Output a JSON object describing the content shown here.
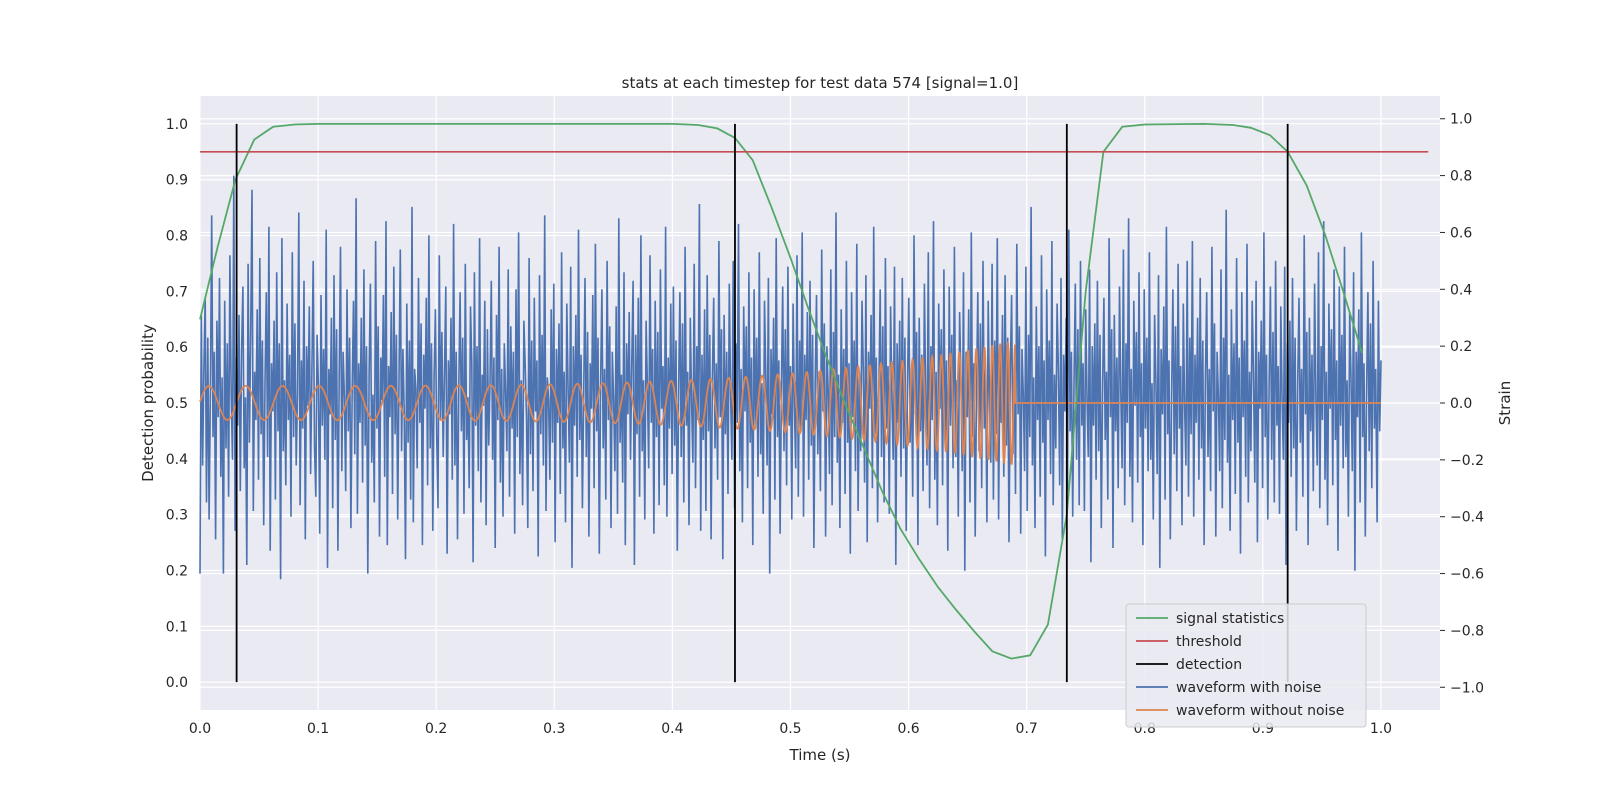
{
  "chart_data": {
    "type": "line",
    "title": "stats at each timestep for test data 574 [signal=1.0]",
    "xlabel": "Time (s)",
    "ylabel": "Detection probability",
    "y2label": "Strain",
    "xlim": [
      0.0,
      1.05
    ],
    "ylim": [
      -0.05,
      1.05
    ],
    "y2lim": [
      -1.08,
      1.08
    ],
    "xticks": [
      "0.0",
      "0.1",
      "0.2",
      "0.3",
      "0.4",
      "0.5",
      "0.6",
      "0.7",
      "0.8",
      "0.9",
      "1.0"
    ],
    "yticks": [
      "0.0",
      "0.1",
      "0.2",
      "0.3",
      "0.4",
      "0.5",
      "0.6",
      "0.7",
      "0.8",
      "0.9",
      "1.0"
    ],
    "y2ticks": [
      "−1.0",
      "−0.8",
      "−0.6",
      "−0.4",
      "−0.2",
      "0.0",
      "0.2",
      "0.4",
      "0.6",
      "0.8",
      "1.0"
    ],
    "grid": true,
    "legend_position": "lower right",
    "background_color": "#eaeaf2",
    "series": [
      {
        "name": "signal statistics",
        "axis": "left",
        "color": "#55a868",
        "x": [
          0.0,
          0.015,
          0.03,
          0.046,
          0.062,
          0.08,
          0.1,
          0.2,
          0.3,
          0.4,
          0.422,
          0.438,
          0.453,
          0.468,
          0.484,
          0.5,
          0.515,
          0.53,
          0.546,
          0.562,
          0.578,
          0.593,
          0.609,
          0.625,
          0.64,
          0.656,
          0.671,
          0.687,
          0.703,
          0.718,
          0.734,
          0.75,
          0.765,
          0.781,
          0.8,
          0.85,
          0.875,
          0.89,
          0.906,
          0.921,
          0.937,
          0.953,
          0.968,
          0.984
        ],
        "y": [
          0.65,
          0.78,
          0.9,
          0.972,
          0.995,
          0.999,
          1.0,
          1.0,
          1.0,
          1.0,
          0.998,
          0.992,
          0.975,
          0.935,
          0.85,
          0.76,
          0.67,
          0.585,
          0.5,
          0.42,
          0.34,
          0.275,
          0.22,
          0.17,
          0.13,
          0.09,
          0.055,
          0.042,
          0.048,
          0.103,
          0.3,
          0.7,
          0.95,
          0.995,
          0.999,
          1.0,
          0.998,
          0.993,
          0.98,
          0.95,
          0.89,
          0.8,
          0.7,
          0.59
        ]
      },
      {
        "name": "threshold",
        "axis": "left",
        "color": "#c44e52",
        "x": [
          0.0,
          1.04
        ],
        "y": [
          0.95,
          0.95
        ]
      },
      {
        "name": "detection",
        "axis": "left",
        "color": "#000000",
        "vlines": [
          0.031,
          0.453,
          0.734,
          0.921
        ],
        "ymin": 0.0,
        "ymax": 1.0
      },
      {
        "name": "waveform with noise",
        "axis": "right",
        "color": "#4c72b0",
        "x_start": 0.0,
        "x_end": 1.0,
        "y2": [
          -0.6,
          0.31,
          -0.22,
          0.12,
          0.37,
          -0.35,
          0.23,
          -0.41,
          0.04,
          0.66,
          -0.12,
          0.18,
          -0.48,
          0.29,
          -0.05,
          0.44,
          -0.26,
          0.09,
          -0.6,
          0.36,
          -0.16,
          0.21,
          -0.33,
          0.52,
          0.03,
          -0.2,
          0.8,
          -0.45,
          0.16,
          -0.08,
          0.31,
          -0.31,
          0.19,
          0.41,
          -0.23,
          0.02,
          -0.57,
          0.49,
          -0.14,
          0.25,
          0.75,
          -0.38,
          0.11,
          -0.06,
          0.33,
          -0.27,
          0.51,
          -0.11,
          0.22,
          -0.43,
          0.07,
          0.39,
          -0.19,
          0.62,
          -0.52,
          0.14,
          -0.03,
          0.29,
          -0.34,
          0.46,
          -0.1,
          0.21,
          -0.62,
          0.58,
          -0.17,
          0.08,
          -0.29,
          0.35,
          -0.06,
          0.17,
          -0.4,
          0.53,
          -0.12,
          0.28,
          -0.22,
          0.04,
          0.67,
          -0.36,
          0.15,
          -0.09,
          0.43,
          -0.48,
          0.2,
          -0.01,
          0.34,
          -0.25,
          0.11,
          0.5,
          -0.15,
          -0.33,
          0.24,
          0.06,
          -0.46,
          0.38,
          -0.08,
          0.19,
          -0.2,
          0.61,
          -0.58,
          0.12,
          -0.04,
          0.3,
          -0.37,
          0.45,
          -0.13,
          0.26,
          -0.52,
          0.09,
          0.55,
          -0.24,
          0.18,
          0.02,
          -0.31,
          0.4,
          -0.1,
          0.23,
          -0.44,
          0.05,
          0.36,
          -0.18,
          0.72,
          -0.39,
          0.14,
          -0.07,
          0.3,
          -0.28,
          0.47,
          -0.15,
          0.2,
          -0.6,
          0.1,
          0.42,
          -0.21,
          0.03,
          -0.35,
          0.57,
          -0.09,
          0.27,
          -0.47,
          0.16,
          0.01,
          0.38,
          -0.26,
          0.64,
          -0.5,
          0.13,
          -0.05,
          0.32,
          -0.32,
          0.48,
          -0.11,
          0.24,
          -0.41,
          0.08,
          0.54,
          -0.17,
          0.19,
          -0.03,
          -0.55,
          0.35,
          -0.14,
          0.22,
          -0.34,
          0.69,
          -0.42,
          0.12,
          0.05,
          -0.23,
          0.44,
          -0.07,
          0.28,
          -0.5,
          0.17,
          -0.02,
          0.37,
          -0.29,
          0.59,
          -0.16,
          0.21,
          -0.45,
          0.09,
          0.33,
          -0.12,
          -0.37,
          0.52,
          -0.06,
          0.25,
          -0.19,
          0.11,
          0.41,
          -0.53,
          0.15,
          -0.04,
          0.3,
          -0.27,
          0.63,
          -0.22,
          0.18,
          -0.48,
          0.06,
          0.39,
          -0.1,
          0.23,
          -0.39,
          0.49,
          -0.13,
          0.02,
          -0.3,
          0.34,
          0.14,
          -0.56,
          0.46,
          -0.08,
          0.2,
          -0.24,
          0.58,
          -0.35,
          0.1,
          -0.01,
          0.36,
          -0.43,
          0.26,
          -0.15,
          0.07,
          0.43,
          -0.2,
          0.16,
          -0.51,
          0.31,
          -0.06,
          0.55,
          -0.28,
          0.12,
          -0.4,
          0.21,
          0.04,
          -0.17,
          0.47,
          -0.33,
          0.27,
          -0.09,
          0.18,
          -0.46,
          0.4,
          -0.12,
          0.6,
          -0.25,
          0.08,
          -0.36,
          0.29,
          0.13,
          -0.05,
          -0.44,
          0.51,
          -0.18,
          0.22,
          -0.31,
          0.37,
          -0.03,
          0.15,
          -0.54,
          0.45,
          -0.11,
          0.24,
          -0.22,
          0.66,
          -0.38,
          0.09,
          0.01,
          -0.27,
          0.33,
          -0.14,
          0.42,
          -0.49,
          0.19,
          -0.07,
          0.28,
          -0.32,
          0.53,
          -0.16,
          0.11,
          -0.42,
          0.35,
          0.05,
          -0.21,
          0.48,
          -0.58,
          0.2,
          -0.08,
          0.31,
          -0.26,
          0.61,
          -0.13,
          0.17,
          -0.37,
          0.03,
          0.44,
          -0.19,
          0.25,
          -0.47,
          0.14,
          -0.02,
          0.38,
          -0.3,
          0.56,
          -0.1,
          0.23,
          -0.53,
          0.07,
          0.4,
          -0.16,
          0.12,
          -0.34,
          0.5,
          -0.06,
          0.27,
          -0.44,
          0.18,
          0.02,
          -0.24,
          0.34,
          -0.39,
          0.65,
          -0.14,
          0.1,
          -0.28,
          0.46,
          -0.5,
          0.21,
          -0.04,
          0.32,
          -0.2,
          0.15,
          0.43,
          -0.57,
          0.24,
          -0.11,
          0.37,
          -0.33,
          0.59,
          -0.17,
          0.08,
          -0.41,
          0.29,
          0.06,
          -0.23,
          0.52,
          -0.07,
          0.19,
          -0.46,
          0.36,
          -0.12,
          0.25,
          -0.36,
          0.47,
          -0.02,
          0.13,
          -0.29,
          0.62,
          -0.4,
          0.16,
          -0.09,
          0.35,
          -0.25,
          0.41,
          -0.15,
          0.22,
          -0.52,
          0.04,
          0.39,
          -0.19,
          0.28,
          -0.35,
          0.55,
          -0.08,
          0.11,
          -0.43,
          0.3,
          0.0,
          -0.21,
          0.49,
          -0.3,
          0.2,
          -0.06,
          0.7,
          -0.45,
          0.17,
          -0.13,
          0.33,
          -0.38,
          0.45,
          -0.1,
          0.24,
          -0.48,
          0.09,
          0.37,
          -0.16,
          0.14,
          -0.27,
          0.57,
          -0.05,
          0.26,
          -0.55,
          0.31,
          -0.11,
          0.18,
          -0.32,
          0.42,
          0.03,
          -0.2,
          0.5,
          -0.37,
          0.21,
          -0.07,
          0.63,
          -0.24,
          0.12,
          -0.42,
          0.34,
          -0.03,
          0.27,
          -0.3,
          0.46,
          -0.14,
          0.16,
          -0.5,
          0.4,
          -0.09,
          0.23,
          -0.26,
          0.53,
          -0.18,
          0.07,
          -0.39,
          0.36,
          0.1,
          -0.22,
          0.44,
          -0.6,
          0.19,
          -0.04,
          0.3,
          -0.34,
          0.58,
          -0.12,
          0.15,
          -0.46,
          0.05,
          0.41,
          -0.17,
          0.26,
          -0.29,
          0.48,
          -0.08,
          0.13,
          -0.41,
          0.35,
          -0.01,
          -0.23,
          0.52,
          -0.33,
          0.22,
          -0.1,
          0.6,
          -0.4,
          0.17,
          -0.06,
          0.32,
          -0.27,
          0.43,
          -0.15,
          0.24,
          -0.51,
          0.08,
          0.38,
          -0.18,
          0.11,
          -0.31,
          0.54,
          -0.03,
          0.28,
          -0.47,
          0.2,
          0.04,
          -0.25,
          0.47,
          -0.36,
          0.25,
          -0.12,
          0.67,
          -0.21,
          0.1,
          -0.44,
          0.33,
          -0.07,
          0.19,
          -0.32,
          0.5,
          -0.14,
          0.14,
          -0.53,
          0.39,
          -0.05,
          0.22,
          -0.24,
          0.56,
          -0.38,
          0.09,
          -0.17,
          0.36,
          0.12,
          -0.28,
          0.45,
          -0.49,
          0.18,
          -0.02,
          0.31,
          -0.3,
          0.62,
          -0.11,
          0.16,
          -0.42,
          0.06,
          0.4,
          -0.19,
          0.27,
          -0.35,
          0.51,
          -0.09,
          0.13,
          -0.39,
          0.34,
          0.01,
          -0.2,
          0.48,
          -0.57,
          0.21,
          -0.07,
          0.29,
          -0.26,
          0.44,
          -0.16,
          0.23,
          -0.45,
          0.07,
          0.37,
          -0.14,
          0.12,
          -0.33,
          0.59,
          -0.04,
          0.25,
          -0.5,
          0.3,
          -0.1,
          0.17,
          -0.31,
          0.42,
          0.02,
          -0.22,
          0.53,
          -0.37,
          0.2,
          -0.06,
          0.64,
          -0.27,
          0.11,
          -0.43,
          0.35,
          -0.02,
          0.26,
          -0.29,
          0.47,
          -0.13,
          0.15,
          -0.52,
          0.41,
          -0.08,
          0.24,
          -0.23,
          0.55,
          -0.19,
          0.08,
          -0.4,
          0.32,
          0.09,
          -0.24,
          0.46,
          -0.59,
          0.18,
          -0.05,
          0.33,
          -0.35,
          0.6,
          -0.12,
          0.14,
          -0.47,
          0.04,
          0.39,
          -0.17,
          0.28,
          -0.3,
          0.5,
          -0.09,
          0.12,
          -0.42,
          0.36,
          0.0,
          -0.21,
          0.49,
          -0.34,
          0.22,
          -0.11,
          0.58,
          -0.41,
          0.16,
          -0.07,
          0.31,
          -0.26,
          0.45,
          -0.15,
          0.23,
          -0.49,
          0.1,
          0.38,
          -0.18,
          0.13,
          -0.32,
          0.56,
          -0.04,
          0.27,
          -0.46,
          0.19,
          0.03,
          -0.24,
          0.48,
          -0.38,
          0.24,
          -0.12,
          0.69,
          -0.22,
          0.09,
          -0.44,
          0.34,
          -0.06,
          0.2,
          -0.33,
          0.52,
          -0.14,
          0.15,
          -0.54,
          0.4,
          -0.06,
          0.22,
          -0.25,
          0.57,
          -0.36,
          0.1,
          -0.16,
          0.35,
          0.11,
          -0.29,
          0.44,
          -0.48,
          0.17,
          -0.03,
          0.3,
          -0.31,
          0.61,
          -0.1,
          0.18,
          -0.4,
          0.07,
          0.42,
          -0.2,
          0.26,
          -0.36,
          0.5,
          -0.08,
          0.14,
          -0.38,
          0.33,
          0.02,
          -0.19,
          0.47,
          -0.56,
          0.2,
          -0.08,
          0.28,
          -0.27,
          0.43,
          -0.17,
          0.24,
          -0.44,
          0.06,
          0.37,
          -0.13,
          0.11,
          -0.34,
          0.58,
          -0.05,
          0.26,
          -0.51,
          0.31,
          -0.1,
          0.16,
          -0.3,
          0.41,
          0.04,
          -0.23,
          0.54,
          -0.36,
          0.21,
          -0.07,
          0.65,
          -0.26,
          0.12,
          -0.42,
          0.36,
          -0.01,
          0.25,
          -0.28,
          0.46,
          -0.12,
          0.14,
          -0.5,
          0.4,
          -0.09,
          0.23,
          -0.24,
          0.53,
          -0.2,
          0.07,
          -0.41,
          0.31,
          0.08,
          -0.25,
          0.45,
          -0.58,
          0.19,
          -0.04,
          0.34,
          -0.34,
          0.62,
          -0.11,
          0.15,
          -0.48,
          0.03,
          0.4,
          -0.18,
          0.27,
          -0.31,
          0.49,
          -0.09,
          0.13,
          -0.43,
          0.35,
          -0.01,
          -0.22,
          0.5,
          -0.33,
          0.23,
          -0.11,
          0.57,
          -0.4,
          0.17,
          -0.07,
          0.3,
          -0.27,
          0.44,
          -0.16,
          0.22,
          -0.5,
          0.09,
          0.39,
          -0.19,
          0.12,
          -0.31,
          0.55,
          -0.03,
          0.28,
          -0.47,
          0.18,
          0.02,
          -0.24,
          0.47,
          -0.37,
          0.23,
          -0.13,
          0.68,
          -0.21,
          0.1,
          -0.45,
          0.33,
          -0.06,
          0.21,
          -0.32,
          0.51,
          -0.14,
          0.16,
          -0.53,
          0.39,
          -0.05,
          0.22,
          -0.26,
          0.56,
          -0.35,
          0.11,
          -0.17,
          0.36,
          0.1,
          -0.28,
          0.43,
          -0.49,
          0.18,
          -0.02,
          0.29,
          -0.3,
          0.6,
          -0.12,
          0.17,
          -0.41,
          0.06,
          0.41,
          -0.2,
          0.25,
          -0.35,
          0.5,
          -0.08,
          0.13,
          -0.39,
          0.34,
          0.01,
          -0.2,
          0.48,
          -0.57,
          0.21,
          -0.07,
          0.29,
          -0.26,
          0.44,
          -0.16,
          0.23,
          -0.45,
          0.07,
          0.37,
          -0.14,
          0.12,
          -0.33,
          0.59,
          -0.04,
          0.25,
          -0.5,
          0.3,
          -0.1,
          0.17,
          -0.31,
          0.42,
          0.02,
          -0.22,
          0.53,
          -0.37,
          0.2,
          -0.06,
          0.64,
          -0.27,
          0.11,
          -0.43,
          0.35,
          -0.02,
          0.26,
          -0.29,
          0.47,
          -0.13,
          0.15,
          -0.52,
          0.41,
          -0.08,
          0.24,
          -0.23,
          0.55,
          -0.19,
          0.08,
          -0.4,
          0.32,
          0.09,
          -0.24,
          0.46,
          -0.59,
          0.18,
          -0.05,
          0.33,
          -0.35,
          0.6,
          -0.12,
          0.14,
          -0.47,
          0.04,
          0.39,
          -0.17,
          0.28,
          -0.3,
          0.5,
          -0.09,
          0.12,
          -0.42,
          0.36,
          -0.1,
          0.15
        ]
      },
      {
        "name": "waveform without noise",
        "axis": "right",
        "color": "#dd8452",
        "x_start": 0.0,
        "x_end": 1.0,
        "chirp_end": 0.69,
        "amplitude_start": 0.06,
        "amplitude_peak": 0.22,
        "frequency_start_hz": 32,
        "frequency_end_hz": 160
      }
    ]
  }
}
